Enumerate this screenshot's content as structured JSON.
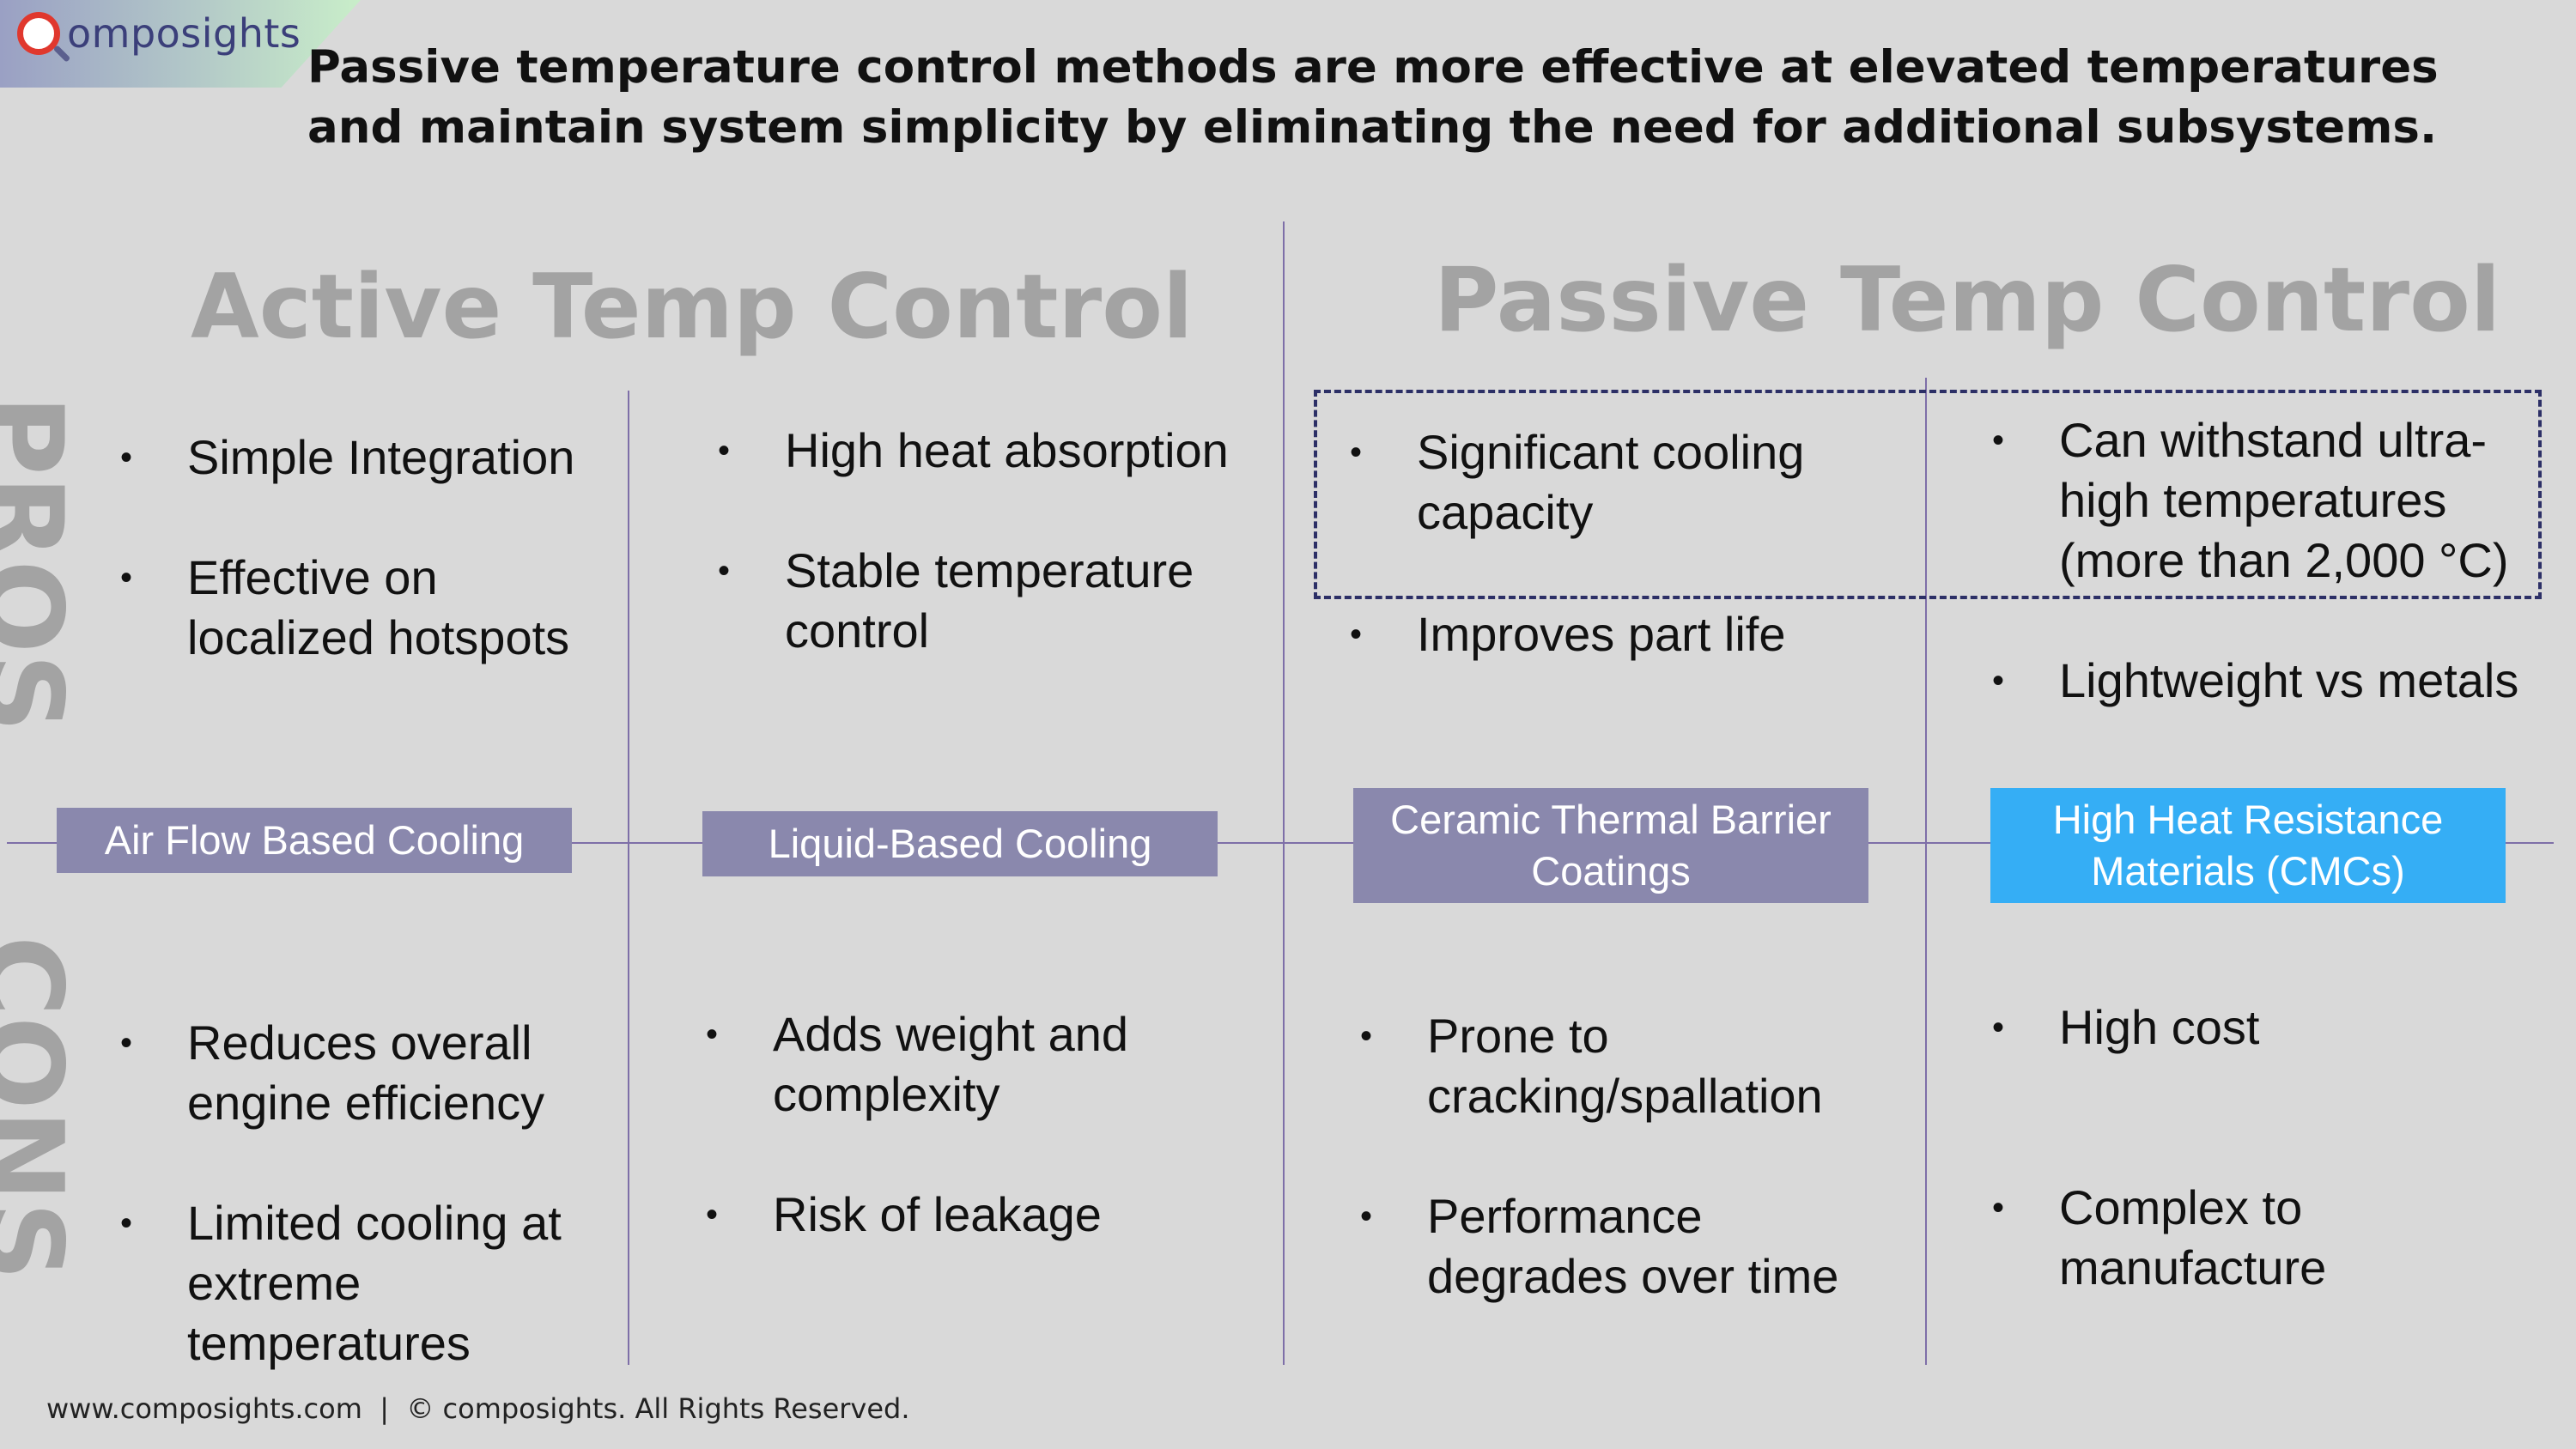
{
  "logo": {
    "text": "omposights"
  },
  "headline": "Passive temperature control methods are more effective at elevated temperatures and maintain system simplicity by eliminating the need for additional subsystems.",
  "sections": {
    "active": "Active Temp Control",
    "passive": "Passive Temp Control"
  },
  "side_labels": {
    "pros": "PROS",
    "cons": "CONS"
  },
  "columns": [
    {
      "category": "Air Flow Based Cooling",
      "pros": [
        "Simple Integration",
        "Effective on localized hotspots"
      ],
      "cons": [
        "Reduces overall engine efficiency",
        "Limited cooling at extreme temperatures"
      ]
    },
    {
      "category": "Liquid-Based Cooling",
      "pros": [
        "High heat absorption",
        "Stable temperature control"
      ],
      "cons": [
        "Adds weight and complexity",
        "Risk of leakage"
      ]
    },
    {
      "category": "Ceramic Thermal Barrier Coatings",
      "pros": [
        "Significant cooling capacity",
        "Improves part life"
      ],
      "cons": [
        "Prone to cracking/spallation",
        "Performance degrades over time"
      ]
    },
    {
      "category": "High Heat Resistance Materials (CMCs)",
      "pros": [
        "Can withstand ultra-high temperatures (more than 2,000 °C)",
        "Lightweight vs metals"
      ],
      "cons": [
        "High cost",
        "Complex to manufacture"
      ]
    }
  ],
  "colors": {
    "category_purple": "#8a88ad",
    "category_blue": "#35aef5",
    "lines": "#7e6fa8",
    "dashed": "#2c2f66"
  },
  "footer": "www.composights.com  |  © composights. All Rights Reserved."
}
